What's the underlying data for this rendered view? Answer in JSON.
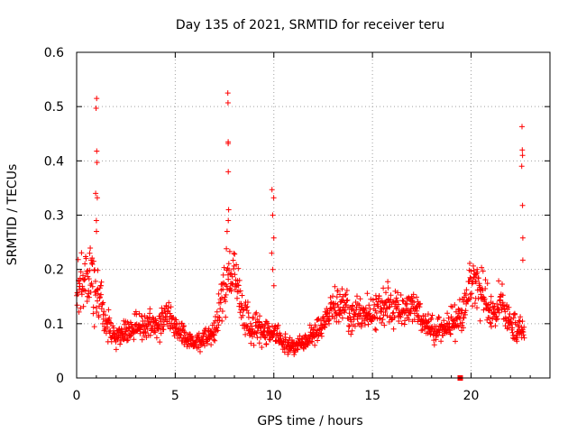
{
  "chart_data": {
    "type": "scatter",
    "title": "Day 135 of 2021, SRMTID for receiver teru",
    "xlabel": "GPS time / hours",
    "ylabel": "SRMTID / TECUs",
    "xlim": [
      0,
      24
    ],
    "ylim": [
      0,
      0.6
    ],
    "xticks": [
      0,
      5,
      10,
      15,
      20
    ],
    "xtick_labels": [
      "0",
      "5",
      "10",
      "15",
      "20"
    ],
    "yticks": [
      0,
      0.1,
      0.2,
      0.3,
      0.4,
      0.5,
      0.6
    ],
    "ytick_labels": [
      "0",
      "0.1",
      "0.2",
      "0.3",
      "0.4",
      "0.5",
      "0.6"
    ],
    "grid": true,
    "marker": "+",
    "color": "#ff0000",
    "outlier_marker": {
      "x": 19.45,
      "y": 0.0,
      "shape": "square"
    },
    "profile": [
      [
        0.0,
        0.16,
        0.05
      ],
      [
        0.5,
        0.19,
        0.06
      ],
      [
        1.0,
        0.17,
        0.05
      ],
      [
        1.5,
        0.1,
        0.03
      ],
      [
        2.0,
        0.075,
        0.02
      ],
      [
        2.5,
        0.085,
        0.02
      ],
      [
        3.0,
        0.09,
        0.025
      ],
      [
        3.5,
        0.1,
        0.025
      ],
      [
        4.0,
        0.095,
        0.025
      ],
      [
        4.5,
        0.12,
        0.03
      ],
      [
        5.0,
        0.1,
        0.025
      ],
      [
        5.5,
        0.075,
        0.02
      ],
      [
        6.0,
        0.065,
        0.015
      ],
      [
        6.5,
        0.07,
        0.02
      ],
      [
        7.0,
        0.09,
        0.02
      ],
      [
        7.5,
        0.17,
        0.05
      ],
      [
        8.0,
        0.2,
        0.05
      ],
      [
        8.5,
        0.11,
        0.03
      ],
      [
        9.0,
        0.09,
        0.025
      ],
      [
        9.5,
        0.085,
        0.025
      ],
      [
        10.0,
        0.09,
        0.025
      ],
      [
        10.5,
        0.06,
        0.015
      ],
      [
        11.0,
        0.06,
        0.015
      ],
      [
        11.5,
        0.065,
        0.015
      ],
      [
        12.0,
        0.08,
        0.02
      ],
      [
        12.5,
        0.1,
        0.025
      ],
      [
        13.0,
        0.13,
        0.03
      ],
      [
        13.5,
        0.14,
        0.035
      ],
      [
        14.0,
        0.11,
        0.03
      ],
      [
        14.5,
        0.115,
        0.03
      ],
      [
        15.0,
        0.12,
        0.03
      ],
      [
        15.5,
        0.14,
        0.035
      ],
      [
        16.0,
        0.13,
        0.03
      ],
      [
        16.5,
        0.12,
        0.03
      ],
      [
        17.0,
        0.14,
        0.035
      ],
      [
        17.5,
        0.105,
        0.025
      ],
      [
        18.0,
        0.09,
        0.025
      ],
      [
        18.5,
        0.085,
        0.025
      ],
      [
        19.0,
        0.1,
        0.025
      ],
      [
        19.5,
        0.115,
        0.03
      ],
      [
        20.0,
        0.18,
        0.04
      ],
      [
        20.5,
        0.16,
        0.04
      ],
      [
        21.0,
        0.12,
        0.03
      ],
      [
        21.5,
        0.14,
        0.035
      ],
      [
        22.0,
        0.1,
        0.03
      ],
      [
        22.5,
        0.08,
        0.025
      ],
      [
        22.7,
        0.08,
        0.02
      ]
    ],
    "spikes": [
      {
        "x": 1.0,
        "values": [
          0.515,
          0.497,
          0.418,
          0.397,
          0.34,
          0.332,
          0.29,
          0.27
        ]
      },
      {
        "x": 7.65,
        "values": [
          0.525,
          0.507,
          0.435,
          0.432,
          0.38,
          0.31,
          0.29,
          0.27
        ]
      },
      {
        "x": 9.95,
        "values": [
          0.347,
          0.332,
          0.3,
          0.258,
          0.23,
          0.2,
          0.17
        ]
      },
      {
        "x": 22.6,
        "values": [
          0.463,
          0.42,
          0.41,
          0.39,
          0.318,
          0.258,
          0.217
        ]
      }
    ],
    "point_count": 1400,
    "seed": 135
  }
}
